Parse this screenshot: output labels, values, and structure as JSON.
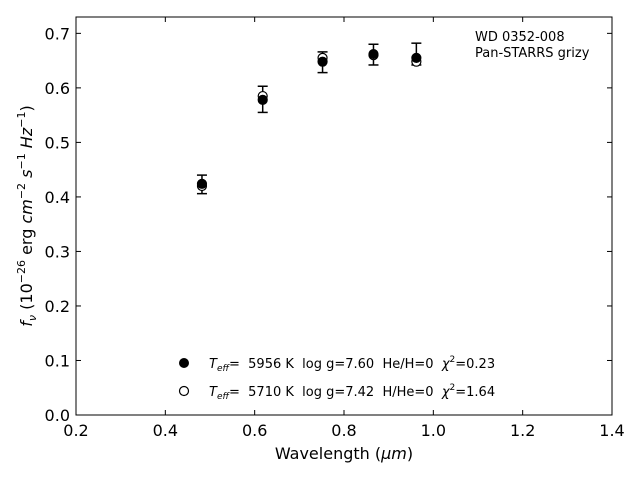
{
  "chart_data": {
    "type": "scatter",
    "title": "",
    "xlabel_main": "Wavelength (",
    "xlabel_unit": "μm",
    "xlabel_end": ")",
    "ylabel": "f_ν (10^−26 erg cm^−2 s^−1 Hz^−1)",
    "xlim": [
      0.2,
      1.4
    ],
    "ylim": [
      0.0,
      0.73
    ],
    "xticks": [
      0.2,
      0.4,
      0.6,
      0.8,
      1.0,
      1.2,
      1.4
    ],
    "yticks": [
      0.0,
      0.1,
      0.2,
      0.3,
      0.4,
      0.5,
      0.6,
      0.7
    ],
    "grid": false,
    "annotation": [
      "WD 0352-008",
      "Pan-STARRS grizy"
    ],
    "observed": {
      "x": [
        0.482,
        0.618,
        0.752,
        0.866,
        0.962
      ],
      "y": [
        0.423,
        0.579,
        0.647,
        0.661,
        0.662
      ],
      "err": [
        0.017,
        0.024,
        0.019,
        0.019,
        0.02
      ]
    },
    "series": [
      {
        "name": "T_eff= 5956 K log g=7.60 He/H=0 χ²=0.23",
        "marker": "filled",
        "x": [
          0.482,
          0.618,
          0.752,
          0.866,
          0.962
        ],
        "y": [
          0.424,
          0.578,
          0.648,
          0.662,
          0.655
        ]
      },
      {
        "name": "T_eff= 5710 K log g=7.42 H/He=0 χ²=1.64",
        "marker": "open",
        "x": [
          0.482,
          0.618,
          0.752,
          0.866,
          0.962
        ],
        "y": [
          0.42,
          0.585,
          0.655,
          0.66,
          0.648
        ]
      }
    ],
    "legend": {
      "placement": "lower-center",
      "entries": [
        {
          "marker": "filled",
          "teff_label": "T",
          "teff_sub": "eff",
          "text": "=  5956 K  log g=7.60  He/H=0  ",
          "chi": "χ",
          "chi_sup": "2",
          "chi_val": "=0.23"
        },
        {
          "marker": "open",
          "teff_label": "T",
          "teff_sub": "eff",
          "text": "=  5710 K  log g=7.42  H/He=0  ",
          "chi": "χ",
          "chi_sup": "2",
          "chi_val": "=1.64"
        }
      ]
    }
  }
}
